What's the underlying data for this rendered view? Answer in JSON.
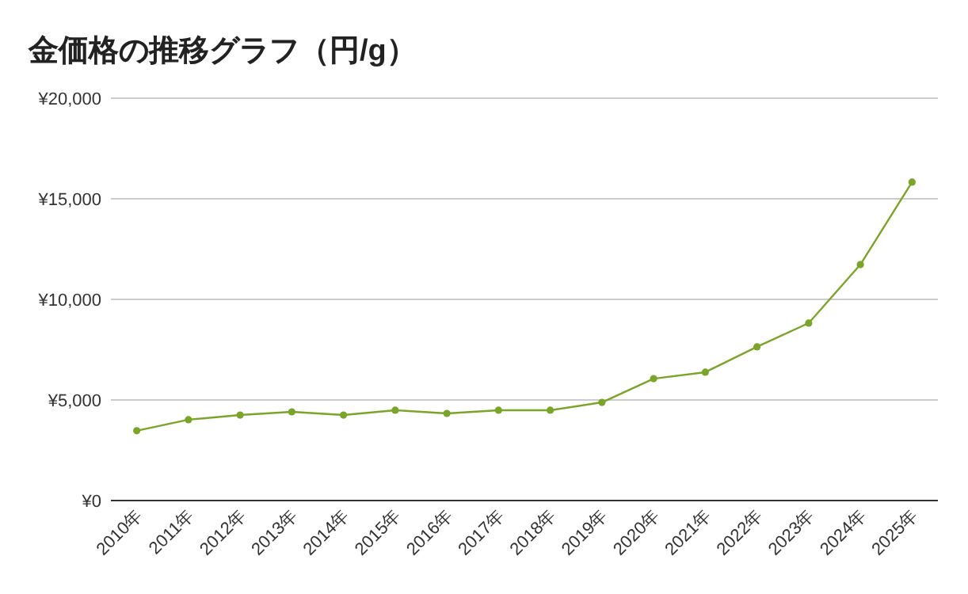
{
  "chart_data": {
    "type": "line",
    "title": "金価格の推移グラフ（円/g）",
    "categories": [
      "2010年",
      "2011年",
      "2012年",
      "2013年",
      "2014年",
      "2015年",
      "2016年",
      "2017年",
      "2018年",
      "2019年",
      "2020年",
      "2021年",
      "2022年",
      "2023年",
      "2024年",
      "2025年"
    ],
    "series": [
      {
        "color": "#7aa52a",
        "values": [
          3470,
          4020,
          4250,
          4410,
          4250,
          4490,
          4330,
          4490,
          4490,
          4880,
          6060,
          6380,
          7640,
          8820,
          11730,
          15830
        ]
      }
    ],
    "ylim": [
      0,
      20000
    ],
    "yticks": [
      {
        "value": 0,
        "label": "¥0"
      },
      {
        "value": 5000,
        "label": "¥5,000"
      },
      {
        "value": 10000,
        "label": "¥10,000"
      },
      {
        "value": 15000,
        "label": "¥15,000"
      },
      {
        "value": 20000,
        "label": "¥20,000"
      }
    ],
    "grid": "y",
    "marker": "circle",
    "line_style": "solid"
  }
}
